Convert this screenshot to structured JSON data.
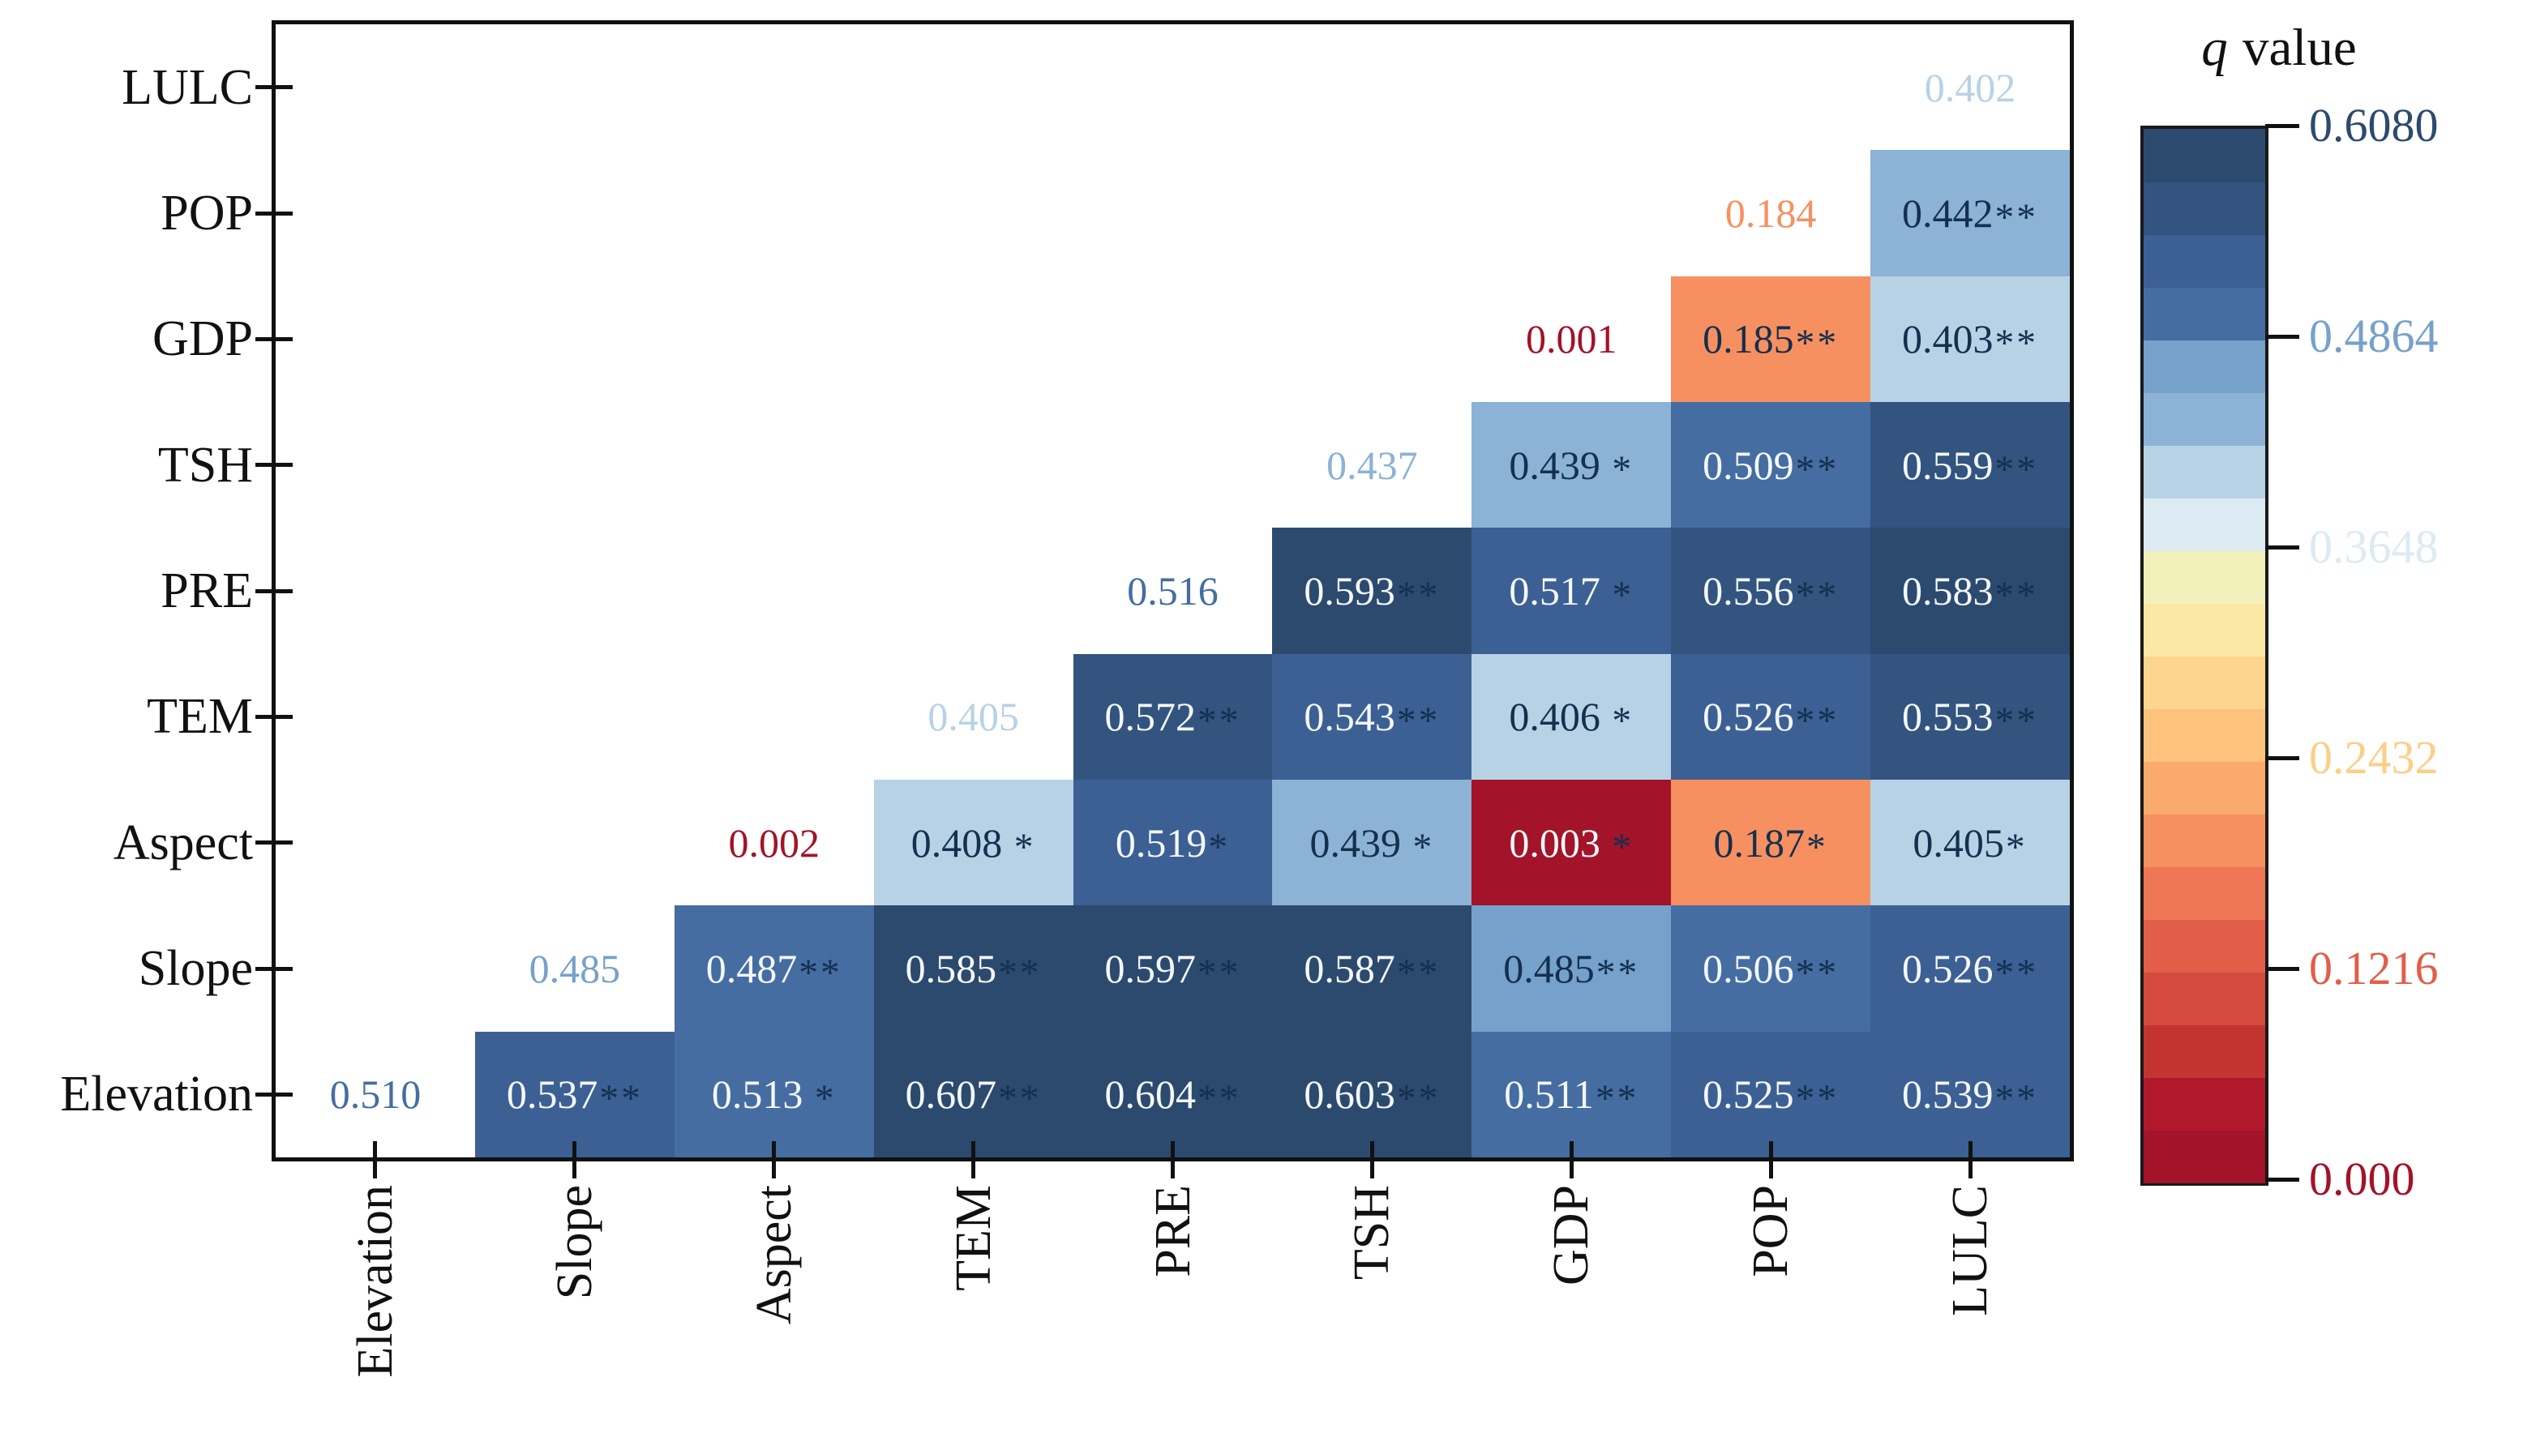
{
  "chart_data": {
    "type": "heatmap",
    "title": "q value",
    "x_categories": [
      "Elevation",
      "Slope",
      "Aspect",
      "TEM",
      "PRE",
      "TSH",
      "GDP",
      "POP",
      "LULC"
    ],
    "y_categories_top_to_bottom": [
      "LULC",
      "POP",
      "GDP",
      "TSH",
      "PRE",
      "TEM",
      "Aspect",
      "Slope",
      "Elevation"
    ],
    "vmin": 0.0,
    "vmax": 0.608,
    "n_bins": 20,
    "grid": "off",
    "legend_position": "right-colorbar",
    "palette_low_to_high": [
      "#a31329",
      "#b2182b",
      "#c33430",
      "#d44a3c",
      "#e25e49",
      "#ee7655",
      "#f79060",
      "#fbaa6e",
      "#fdc37d",
      "#fed58e",
      "#fce8a6",
      "#f2f0bb",
      "#dcebf2",
      "#b8d2e5",
      "#8cb2d5",
      "#76a1ca",
      "#456da1",
      "#3c6094",
      "#32547e",
      "#2c4a6e"
    ],
    "text_colors": {
      "light_on_dark": "#f4f7fb",
      "dark_on_light": "#14304f",
      "stars": "#14304f"
    },
    "colorbar": {
      "title": "q value",
      "title_italic": "q",
      "title_regular": "value",
      "ticks": [
        {
          "value": 0.608,
          "label": "0.6080",
          "color": "#2c4a6e"
        },
        {
          "value": 0.4864,
          "label": "0.4864",
          "color": "#76a1ca"
        },
        {
          "value": 0.3648,
          "label": "0.3648",
          "color": "#dcebf2"
        },
        {
          "value": 0.2432,
          "label": "0.2432",
          "color": "#fccf87"
        },
        {
          "value": 0.1216,
          "label": "0.1216",
          "color": "#e25e49"
        },
        {
          "value": 0.0,
          "label": "0.000",
          "color": "#a31329"
        }
      ]
    },
    "cells": [
      {
        "row": "LULC",
        "col": "LULC",
        "v": 0.402,
        "label": "0.402",
        "stars": "",
        "diagonal": true
      },
      {
        "row": "POP",
        "col": "POP",
        "v": 0.184,
        "label": "0.184",
        "stars": "",
        "diagonal": true
      },
      {
        "row": "POP",
        "col": "LULC",
        "v": 0.442,
        "label": "0.442",
        "stars": "**",
        "diagonal": false
      },
      {
        "row": "GDP",
        "col": "GDP",
        "v": 0.001,
        "label": "0.001",
        "stars": "",
        "diagonal": true
      },
      {
        "row": "GDP",
        "col": "POP",
        "v": 0.185,
        "label": "0.185",
        "stars": "**",
        "diagonal": false
      },
      {
        "row": "GDP",
        "col": "LULC",
        "v": 0.403,
        "label": "0.403",
        "stars": "**",
        "diagonal": false
      },
      {
        "row": "TSH",
        "col": "TSH",
        "v": 0.437,
        "label": "0.437",
        "stars": "",
        "diagonal": true
      },
      {
        "row": "TSH",
        "col": "GDP",
        "v": 0.439,
        "label": "0.439 ",
        "stars": "*",
        "diagonal": false
      },
      {
        "row": "TSH",
        "col": "POP",
        "v": 0.509,
        "label": "0.509",
        "stars": "**",
        "diagonal": false
      },
      {
        "row": "TSH",
        "col": "LULC",
        "v": 0.559,
        "label": "0.559",
        "stars": "**",
        "diagonal": false
      },
      {
        "row": "PRE",
        "col": "PRE",
        "v": 0.516,
        "label": "0.516",
        "stars": "",
        "diagonal": true
      },
      {
        "row": "PRE",
        "col": "TSH",
        "v": 0.593,
        "label": "0.593",
        "stars": "**",
        "diagonal": false
      },
      {
        "row": "PRE",
        "col": "GDP",
        "v": 0.517,
        "label": "0.517 ",
        "stars": "*",
        "diagonal": false
      },
      {
        "row": "PRE",
        "col": "POP",
        "v": 0.556,
        "label": "0.556",
        "stars": "**",
        "diagonal": false
      },
      {
        "row": "PRE",
        "col": "LULC",
        "v": 0.583,
        "label": "0.583",
        "stars": "**",
        "diagonal": false
      },
      {
        "row": "TEM",
        "col": "TEM",
        "v": 0.405,
        "label": "0.405",
        "stars": "",
        "diagonal": true
      },
      {
        "row": "TEM",
        "col": "PRE",
        "v": 0.572,
        "label": "0.572",
        "stars": "**",
        "diagonal": false
      },
      {
        "row": "TEM",
        "col": "TSH",
        "v": 0.543,
        "label": "0.543",
        "stars": "**",
        "diagonal": false
      },
      {
        "row": "TEM",
        "col": "GDP",
        "v": 0.406,
        "label": "0.406 ",
        "stars": "*",
        "diagonal": false
      },
      {
        "row": "TEM",
        "col": "POP",
        "v": 0.526,
        "label": "0.526",
        "stars": "**",
        "diagonal": false
      },
      {
        "row": "TEM",
        "col": "LULC",
        "v": 0.553,
        "label": "0.553",
        "stars": "**",
        "diagonal": false
      },
      {
        "row": "Aspect",
        "col": "Aspect",
        "v": 0.002,
        "label": "0.002",
        "stars": "",
        "diagonal": true
      },
      {
        "row": "Aspect",
        "col": "TEM",
        "v": 0.408,
        "label": "0.408 ",
        "stars": "*",
        "diagonal": false
      },
      {
        "row": "Aspect",
        "col": "PRE",
        "v": 0.519,
        "label": "0.519",
        "stars": "*",
        "diagonal": false
      },
      {
        "row": "Aspect",
        "col": "TSH",
        "v": 0.439,
        "label": "0.439 ",
        "stars": "*",
        "diagonal": false
      },
      {
        "row": "Aspect",
        "col": "GDP",
        "v": 0.003,
        "label": "0.003 ",
        "stars": "*",
        "diagonal": false
      },
      {
        "row": "Aspect",
        "col": "POP",
        "v": 0.187,
        "label": "0.187",
        "stars": "*",
        "diagonal": false
      },
      {
        "row": "Aspect",
        "col": "LULC",
        "v": 0.405,
        "label": "0.405",
        "stars": "*",
        "diagonal": false
      },
      {
        "row": "Slope",
        "col": "Slope",
        "v": 0.485,
        "label": "0.485",
        "stars": "",
        "diagonal": true
      },
      {
        "row": "Slope",
        "col": "Aspect",
        "v": 0.487,
        "label": "0.487",
        "stars": "**",
        "diagonal": false
      },
      {
        "row": "Slope",
        "col": "TEM",
        "v": 0.585,
        "label": "0.585",
        "stars": "**",
        "diagonal": false
      },
      {
        "row": "Slope",
        "col": "PRE",
        "v": 0.597,
        "label": "0.597",
        "stars": "**",
        "diagonal": false
      },
      {
        "row": "Slope",
        "col": "TSH",
        "v": 0.587,
        "label": "0.587",
        "stars": "**",
        "diagonal": false
      },
      {
        "row": "Slope",
        "col": "GDP",
        "v": 0.485,
        "label": "0.485",
        "stars": "**",
        "diagonal": false
      },
      {
        "row": "Slope",
        "col": "POP",
        "v": 0.506,
        "label": "0.506",
        "stars": "**",
        "diagonal": false
      },
      {
        "row": "Slope",
        "col": "LULC",
        "v": 0.526,
        "label": "0.526",
        "stars": "**",
        "diagonal": false
      },
      {
        "row": "Elevation",
        "col": "Elevation",
        "v": 0.51,
        "label": "0.510",
        "stars": "",
        "diagonal": true
      },
      {
        "row": "Elevation",
        "col": "Slope",
        "v": 0.537,
        "label": "0.537",
        "stars": "**",
        "diagonal": false
      },
      {
        "row": "Elevation",
        "col": "Aspect",
        "v": 0.513,
        "label": "0.513 ",
        "stars": "*",
        "diagonal": false
      },
      {
        "row": "Elevation",
        "col": "TEM",
        "v": 0.607,
        "label": "0.607",
        "stars": "**",
        "diagonal": false
      },
      {
        "row": "Elevation",
        "col": "PRE",
        "v": 0.604,
        "label": "0.604",
        "stars": "**",
        "diagonal": false
      },
      {
        "row": "Elevation",
        "col": "TSH",
        "v": 0.603,
        "label": "0.603",
        "stars": "**",
        "diagonal": false
      },
      {
        "row": "Elevation",
        "col": "GDP",
        "v": 0.511,
        "label": "0.511",
        "stars": "**",
        "diagonal": false
      },
      {
        "row": "Elevation",
        "col": "POP",
        "v": 0.525,
        "label": "0.525",
        "stars": "**",
        "diagonal": false
      },
      {
        "row": "Elevation",
        "col": "LULC",
        "v": 0.539,
        "label": "0.539",
        "stars": "**",
        "diagonal": false
      }
    ]
  }
}
